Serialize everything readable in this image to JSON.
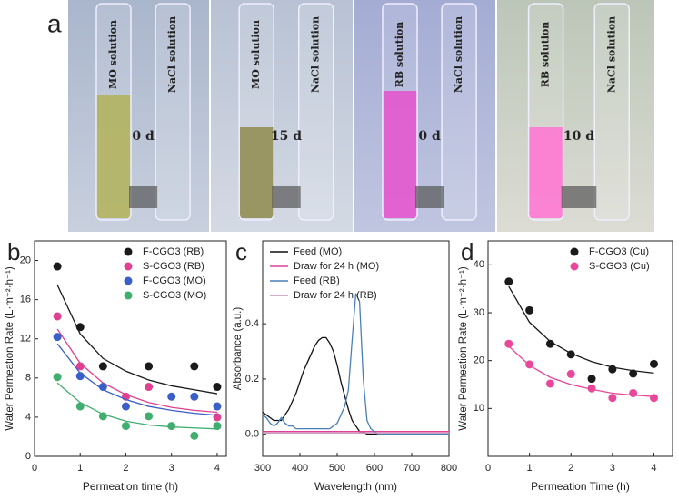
{
  "photos": {
    "panel_label": "a",
    "panels": [
      {
        "left": "MO solution",
        "right": "NaCl solution",
        "time": "0 d"
      },
      {
        "left": "MO solution",
        "right": "NaCl solution",
        "time": "15 d"
      },
      {
        "left": "RB solution",
        "right": "NaCl solution",
        "time": "0 d"
      },
      {
        "left": "RB solution",
        "right": "NaCl solution",
        "time": "10 d"
      }
    ]
  },
  "chart_data": [
    {
      "type": "scatter",
      "panel_label": "b",
      "x_label": "Permeation time (h)",
      "y_label": "Water Permeation Rate (L·m⁻²·h⁻¹)",
      "x": [
        0.5,
        1,
        1.5,
        2,
        2.5,
        3,
        3.5,
        4
      ],
      "series": [
        {
          "name": "F-CGO3 (RB)",
          "color": "#1a1a1a",
          "values": [
            19.4,
            13.2,
            9.2,
            null,
            9.2,
            null,
            9.2,
            7.1
          ],
          "fit": [
            17.5,
            12.5,
            10,
            8.7,
            7.8,
            7.2,
            6.8,
            6.4
          ]
        },
        {
          "name": "S-CGO3 (RB)",
          "color": "#e0408f",
          "values": [
            14.3,
            9.2,
            null,
            6.1,
            7.1,
            null,
            null,
            4.0
          ],
          "fit": [
            13,
            9.5,
            7.5,
            6.3,
            5.5,
            5,
            4.7,
            4.5
          ]
        },
        {
          "name": "F-CGO3 (MO)",
          "color": "#3a5fc8",
          "values": [
            12.2,
            8.2,
            7.1,
            5.1,
            null,
            6.1,
            6.1,
            5.1
          ],
          "fit": [
            11.5,
            8.5,
            6.8,
            5.8,
            5.1,
            4.7,
            4.4,
            4.2
          ]
        },
        {
          "name": "S-CGO3 (MO)",
          "color": "#3fae6f",
          "values": [
            8.1,
            5.1,
            4.1,
            3.1,
            4.1,
            3.1,
            2.1,
            3.1
          ],
          "fit": [
            7.5,
            5.5,
            4.3,
            3.6,
            3.2,
            3,
            2.9,
            2.8
          ]
        }
      ],
      "xlim": [
        0,
        4.2
      ],
      "xticks": [
        0,
        1,
        2,
        3,
        4
      ],
      "ylim": [
        0,
        22
      ],
      "yticks": [
        0,
        4,
        8,
        12,
        16,
        20
      ],
      "legend": "upper right"
    },
    {
      "type": "line",
      "panel_label": "c",
      "x_label": "Wavelength (nm)",
      "y_label": "Absorbance (a.u.)",
      "x": [
        300,
        310,
        320,
        330,
        340,
        350,
        360,
        370,
        380,
        390,
        400,
        410,
        420,
        430,
        440,
        450,
        460,
        470,
        480,
        490,
        500,
        510,
        520,
        530,
        540,
        550,
        560,
        570,
        580,
        590,
        600,
        610,
        620,
        630,
        640,
        650,
        660,
        670,
        680,
        690,
        700,
        710,
        720,
        730,
        740,
        750,
        760,
        770,
        780,
        790,
        800
      ],
      "series": [
        {
          "name": "Feed (MO)",
          "color": "#111111",
          "values": [
            0.08,
            0.07,
            0.06,
            0.05,
            0.05,
            0.05,
            0.07,
            0.09,
            0.12,
            0.15,
            0.19,
            0.23,
            0.26,
            0.29,
            0.32,
            0.34,
            0.35,
            0.35,
            0.33,
            0.3,
            0.25,
            0.19,
            0.14,
            0.09,
            0.05,
            0.03,
            0.01,
            0.01,
            0,
            0,
            0,
            0,
            0,
            0,
            0,
            0,
            0,
            0,
            0,
            0,
            0,
            0,
            0,
            0,
            0,
            0,
            0,
            0,
            0,
            0,
            0
          ]
        },
        {
          "name": "Draw for 24 h (MO)",
          "color": "#e0409a",
          "values": [
            0.01,
            0.01,
            0.01,
            0.01,
            0.01,
            0.01,
            0.01,
            0.01,
            0.01,
            0.01,
            0.01,
            0.01,
            0.01,
            0.01,
            0.01,
            0.01,
            0.01,
            0.01,
            0.01,
            0.01,
            0.01,
            0.01,
            0.01,
            0.01,
            0.01,
            0.01,
            0.01,
            0.01,
            0.01,
            0.01,
            0.01,
            0.01,
            0.01,
            0.01,
            0.01,
            0.01,
            0.01,
            0.01,
            0.01,
            0.01,
            0.01,
            0.01,
            0.01,
            0.01,
            0.01,
            0.01,
            0.01,
            0.01,
            0.01,
            0.01,
            0.01
          ]
        },
        {
          "name": "Feed (RB)",
          "color": "#4a7fb8",
          "values": [
            0.07,
            0.06,
            0.04,
            0.03,
            0.04,
            0.06,
            0.04,
            0.03,
            0.03,
            0.02,
            0.02,
            0.02,
            0.02,
            0.02,
            0.02,
            0.02,
            0.02,
            0.02,
            0.02,
            0.03,
            0.04,
            0.07,
            0.1,
            0.16,
            0.34,
            0.51,
            0.48,
            0.2,
            0.05,
            0.02,
            0.01,
            0,
            0,
            0,
            0,
            0,
            0,
            0,
            0,
            0,
            0,
            0,
            0,
            0,
            0,
            0,
            0,
            0,
            0,
            0,
            0
          ]
        },
        {
          "name": "Draw for 24 h (RB)",
          "color": "#c890b8",
          "values": [
            0.005,
            0.005,
            0.005,
            0.005,
            0.005,
            0.005,
            0.005,
            0.005,
            0.005,
            0.005,
            0.005,
            0.005,
            0.005,
            0.005,
            0.005,
            0.005,
            0.005,
            0.005,
            0.005,
            0.005,
            0.005,
            0.005,
            0.005,
            0.005,
            0.005,
            0.005,
            0.005,
            0.005,
            0.005,
            0.005,
            0.005,
            0.005,
            0.005,
            0.005,
            0.005,
            0.005,
            0.005,
            0.005,
            0.005,
            0.005,
            0.005,
            0.005,
            0.005,
            0.005,
            0.005,
            0.005,
            0.005,
            0.005,
            0.005,
            0.005,
            0.005
          ]
        }
      ],
      "xlim": [
        300,
        800
      ],
      "xticks": [
        300,
        400,
        500,
        600,
        700,
        800
      ],
      "ylim": [
        -0.08,
        0.7
      ],
      "yticks": [
        {
          "value": 0,
          "label": "0.0"
        },
        0.2,
        0.4
      ],
      "legend": "upper left"
    },
    {
      "type": "scatter",
      "panel_label": "d",
      "x_label": "Permeation Time (h)",
      "y_label": "Water Permeation Rate (L·m⁻²·h⁻¹)",
      "x": [
        0.5,
        1,
        1.5,
        2,
        2.5,
        3,
        3.5,
        4
      ],
      "series": [
        {
          "name": "F-CGO3 (Cu)",
          "color": "#1a1a1a",
          "values": [
            36.5,
            30.5,
            23.5,
            21.3,
            16.2,
            18.2,
            17.3,
            19.3
          ],
          "fit": [
            35.5,
            28,
            24,
            21.5,
            19.8,
            18.6,
            17.9,
            17.4
          ]
        },
        {
          "name": "S-CGO3 (Cu)",
          "color": "#e8479a",
          "values": [
            23.5,
            19.2,
            15.2,
            17.2,
            14.2,
            12.2,
            13.2,
            12.2
          ],
          "fit": [
            23,
            19,
            16.5,
            15,
            14,
            13.2,
            12.8,
            12.5
          ]
        }
      ],
      "xlim": [
        0,
        4.45
      ],
      "xticks": [
        0,
        1,
        2,
        3,
        4
      ],
      "ylim": [
        0,
        45
      ],
      "yticks": [
        10,
        20,
        30,
        40
      ],
      "legend": "upper right"
    }
  ]
}
